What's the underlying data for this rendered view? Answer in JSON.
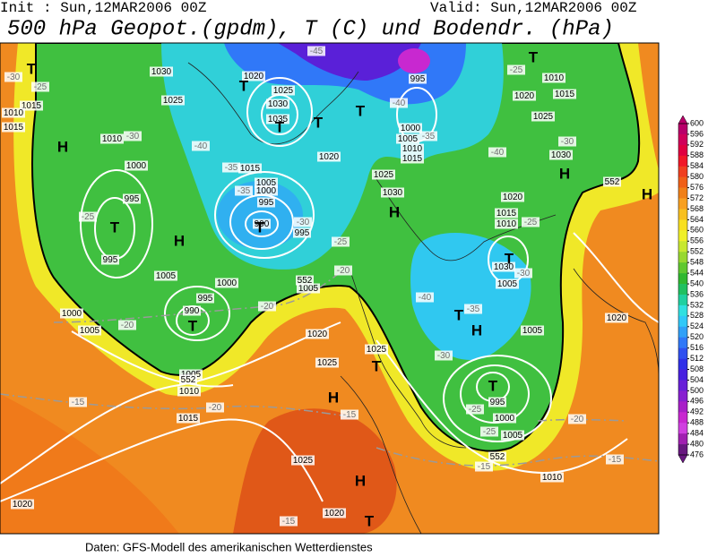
{
  "header": {
    "init": "Init : Sun,12MAR2006 00Z",
    "valid": "Valid: Sun,12MAR2006 00Z",
    "title": "500 hPa Geopot.(gpdm), T (C) und Bodendr. (hPa)"
  },
  "map": {
    "centers": [
      "T",
      "T",
      "T",
      "T",
      "T",
      "H",
      "T",
      "H",
      "T",
      "H",
      "T",
      "T",
      "T",
      "H",
      "T",
      "H",
      "T",
      "H",
      "H",
      "H",
      "T",
      "T"
    ],
    "pressure_labels": [
      "1005",
      "1030",
      "1020",
      "1025",
      "1030",
      "1035",
      "995",
      "1015",
      "1010",
      "1015",
      "1025",
      "1010",
      "1000",
      "995",
      "995",
      "1015",
      "1005",
      "1000",
      "995",
      "990",
      "995",
      "1020",
      "1025",
      "1030",
      "1000",
      "1005",
      "1010",
      "1015",
      "1010",
      "1015",
      "1020",
      "1025",
      "1030",
      "1020",
      "1015",
      "1010",
      "1030",
      "1005",
      "1000",
      "995",
      "990",
      "1005",
      "1000",
      "1005",
      "1005",
      "1020",
      "1025",
      "1025",
      "1005",
      "1010",
      "1015",
      "1025",
      "1020",
      "1020",
      "1005",
      "995",
      "1000",
      "1005",
      "1010",
      "1020"
    ],
    "temperature_labels": [
      "-30",
      "-25",
      "-30",
      "-40",
      "-35",
      "-35",
      "-30",
      "-25",
      "-20",
      "-20",
      "-20",
      "-25",
      "-45",
      "-40",
      "-35",
      "-25",
      "-40",
      "-30",
      "-25",
      "-30",
      "-35",
      "-40",
      "-30",
      "-25",
      "-25",
      "-20",
      "-15",
      "-15",
      "-15",
      "-15",
      "-20",
      "-15"
    ],
    "height_labels": [
      "552",
      "552",
      "552",
      "552"
    ],
    "colorbar": {
      "levels": [
        600,
        596,
        592,
        588,
        584,
        580,
        576,
        572,
        568,
        564,
        560,
        556,
        552,
        548,
        544,
        540,
        536,
        532,
        528,
        524,
        520,
        516,
        512,
        508,
        504,
        500,
        496,
        492,
        488,
        484,
        480,
        476
      ],
      "colors": [
        "#b8006a",
        "#d0005a",
        "#e00040",
        "#f01828",
        "#f04020",
        "#f06018",
        "#f08018",
        "#f8a020",
        "#f8c020",
        "#f8e020",
        "#f0f028",
        "#c8e830",
        "#98d830",
        "#60c830",
        "#30b830",
        "#20c060",
        "#20d0a0",
        "#30e0e0",
        "#30c8f8",
        "#30a0f8",
        "#3078f8",
        "#3050f0",
        "#3030e8",
        "#4820e0",
        "#6820d8",
        "#8820d0",
        "#a820c8",
        "#c828d0",
        "#d040e0",
        "#a020b0",
        "#681880"
      ]
    }
  },
  "footer": "Daten: GFS-Modell des amerikanischen Wetterdienstes"
}
